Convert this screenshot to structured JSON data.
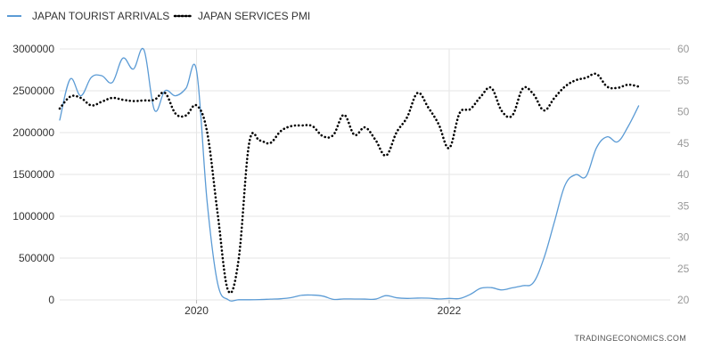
{
  "chart_data": {
    "type": "line",
    "title": "",
    "xlabel": "",
    "ylabel": "",
    "x_range": [
      "2018-12",
      "2023-10"
    ],
    "x_ticks": [
      "2020",
      "2022"
    ],
    "y_left": {
      "range": [
        0,
        3000000
      ],
      "ticks": [
        "0",
        "500000",
        "1000000",
        "1500000",
        "2000000",
        "2500000",
        "3000000"
      ]
    },
    "y_right": {
      "range": [
        20,
        60
      ],
      "ticks": [
        "20",
        "25",
        "30",
        "35",
        "40",
        "45",
        "50",
        "55",
        "60"
      ]
    },
    "grid": true,
    "legend_position": "top-left",
    "series": [
      {
        "name": "JAPAN TOURIST ARRIVALS",
        "axis": "left",
        "style": "solid",
        "color": "#5b9bd5",
        "x": [
          "2018-12",
          "2019-01",
          "2019-02",
          "2019-03",
          "2019-04",
          "2019-05",
          "2019-06",
          "2019-07",
          "2019-08",
          "2019-09",
          "2019-10",
          "2019-11",
          "2019-12",
          "2020-01",
          "2020-02",
          "2020-03",
          "2020-04",
          "2020-05",
          "2020-06",
          "2020-07",
          "2020-08",
          "2020-09",
          "2020-10",
          "2020-11",
          "2020-12",
          "2021-01",
          "2021-02",
          "2021-03",
          "2021-04",
          "2021-05",
          "2021-06",
          "2021-07",
          "2021-08",
          "2021-09",
          "2021-10",
          "2021-11",
          "2021-12",
          "2022-01",
          "2022-02",
          "2022-03",
          "2022-04",
          "2022-05",
          "2022-06",
          "2022-07",
          "2022-08",
          "2022-09",
          "2022-10",
          "2022-11",
          "2022-12",
          "2023-01",
          "2023-02",
          "2023-03",
          "2023-04",
          "2023-05",
          "2023-06",
          "2023-07",
          "2023-08",
          "2023-09"
        ],
        "values": [
          2150000,
          2640000,
          2440000,
          2660000,
          2680000,
          2600000,
          2890000,
          2760000,
          2990000,
          2270000,
          2500000,
          2440000,
          2530000,
          2740000,
          1180000,
          200000,
          3000,
          2000,
          2000,
          4000,
          9000,
          14000,
          28000,
          56000,
          58000,
          46000,
          7000,
          12000,
          11000,
          10000,
          10000,
          51000,
          26000,
          18000,
          22000,
          21000,
          12000,
          18000,
          17000,
          66000,
          139000,
          147000,
          120000,
          145000,
          170000,
          207000,
          499000,
          934000,
          1370000,
          1497000,
          1476000,
          1820000,
          1950000,
          1890000,
          2073000,
          2320000,
          null,
          null
        ]
      },
      {
        "name": "JAPAN SERVICES PMI",
        "axis": "right",
        "style": "dotted",
        "color": "#000000",
        "x": [
          "2018-12",
          "2019-01",
          "2019-02",
          "2019-03",
          "2019-04",
          "2019-05",
          "2019-06",
          "2019-07",
          "2019-08",
          "2019-09",
          "2019-10",
          "2019-11",
          "2019-12",
          "2020-01",
          "2020-02",
          "2020-03",
          "2020-04",
          "2020-05",
          "2020-06",
          "2020-07",
          "2020-08",
          "2020-09",
          "2020-10",
          "2020-11",
          "2020-12",
          "2021-01",
          "2021-02",
          "2021-03",
          "2021-04",
          "2021-05",
          "2021-06",
          "2021-07",
          "2021-08",
          "2021-09",
          "2021-10",
          "2021-11",
          "2021-12",
          "2022-01",
          "2022-02",
          "2022-03",
          "2022-04",
          "2022-05",
          "2022-06",
          "2022-07",
          "2022-08",
          "2022-09",
          "2022-10",
          "2022-11",
          "2022-12",
          "2023-01",
          "2023-02",
          "2023-03",
          "2023-04",
          "2023-05",
          "2023-06",
          "2023-07",
          "2023-08",
          "2023-09"
        ],
        "values": [
          50.5,
          52.4,
          52.2,
          51.0,
          51.6,
          52.2,
          51.9,
          51.7,
          51.8,
          51.9,
          53.0,
          49.7,
          49.4,
          51.0,
          46.8,
          33.8,
          21.5,
          26.5,
          45.0,
          45.4,
          45.0,
          46.9,
          47.7,
          47.8,
          47.7,
          46.1,
          46.3,
          49.5,
          46.3,
          47.5,
          45.5,
          43.0,
          46.7,
          49.1,
          53.0,
          50.7,
          48.0,
          44.2,
          49.8,
          50.4,
          52.4,
          53.8,
          50.1,
          49.4,
          53.7,
          52.8,
          50.2,
          52.2,
          54.0,
          55.0,
          55.4,
          56.0,
          54.0,
          53.8,
          54.3,
          54.0,
          null,
          null
        ]
      }
    ],
    "source_text": "TRADINGECONOMICS.COM"
  },
  "colors": {
    "tourist_line": "#5b9bd5",
    "pmi_line": "#000000",
    "grid": "#e6e6e6",
    "background": "#ffffff"
  }
}
